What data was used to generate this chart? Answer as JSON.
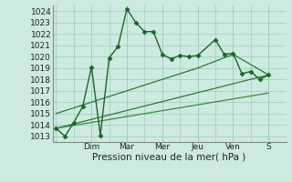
{
  "xlabel": "Pression niveau de la mer( hPa )",
  "bg_color": "#cceae0",
  "grid_color": "#99ccbb",
  "ylim": [
    1012.5,
    1024.5
  ],
  "yticks": [
    1013,
    1014,
    1015,
    1016,
    1017,
    1018,
    1019,
    1020,
    1021,
    1022,
    1023,
    1024
  ],
  "x_day_labels": [
    "Dim",
    "Mar",
    "Mer",
    "Jeu",
    "Ven",
    "S"
  ],
  "x_day_positions": [
    2,
    4,
    6,
    8,
    10,
    12
  ],
  "xlim": [
    -0.2,
    13.0
  ],
  "series": [
    {
      "x": [
        0.0,
        0.5,
        1.0,
        1.5,
        2.0,
        2.5,
        3.0,
        3.5,
        4.0,
        4.5,
        5.0,
        5.5,
        6.0,
        6.5,
        7.0,
        7.5,
        8.0,
        9.0,
        9.5,
        10.0,
        10.5,
        11.0,
        11.5,
        12.0
      ],
      "y": [
        1013.7,
        1013.0,
        1014.2,
        1015.6,
        1019.1,
        1013.1,
        1019.9,
        1020.9,
        1024.2,
        1023.0,
        1022.2,
        1022.2,
        1020.2,
        1019.8,
        1020.1,
        1020.0,
        1020.1,
        1021.5,
        1020.2,
        1020.3,
        1018.5,
        1018.7,
        1018.0,
        1018.4
      ],
      "color": "#1a6622",
      "marker": "D",
      "markersize": 2.5,
      "linewidth": 1.0,
      "zorder": 4
    },
    {
      "x": [
        0.0,
        4.0,
        8.0,
        10.0,
        12.0
      ],
      "y": [
        1015.0,
        1017.0,
        1019.0,
        1020.2,
        1018.4
      ],
      "color": "#2a7a35",
      "marker": null,
      "markersize": 0,
      "linewidth": 0.9,
      "zorder": 2
    },
    {
      "x": [
        0.0,
        12.0
      ],
      "y": [
        1013.7,
        1018.4
      ],
      "color": "#2a7a35",
      "marker": null,
      "markersize": 0,
      "linewidth": 0.9,
      "zorder": 2
    },
    {
      "x": [
        0.0,
        12.0
      ],
      "y": [
        1013.7,
        1016.8
      ],
      "color": "#3a8a40",
      "marker": null,
      "markersize": 0,
      "linewidth": 0.9,
      "zorder": 2
    }
  ],
  "tick_fontsize": 6.5,
  "xlabel_fontsize": 7.5,
  "tick_color": "#222222",
  "spine_color": "#888888"
}
